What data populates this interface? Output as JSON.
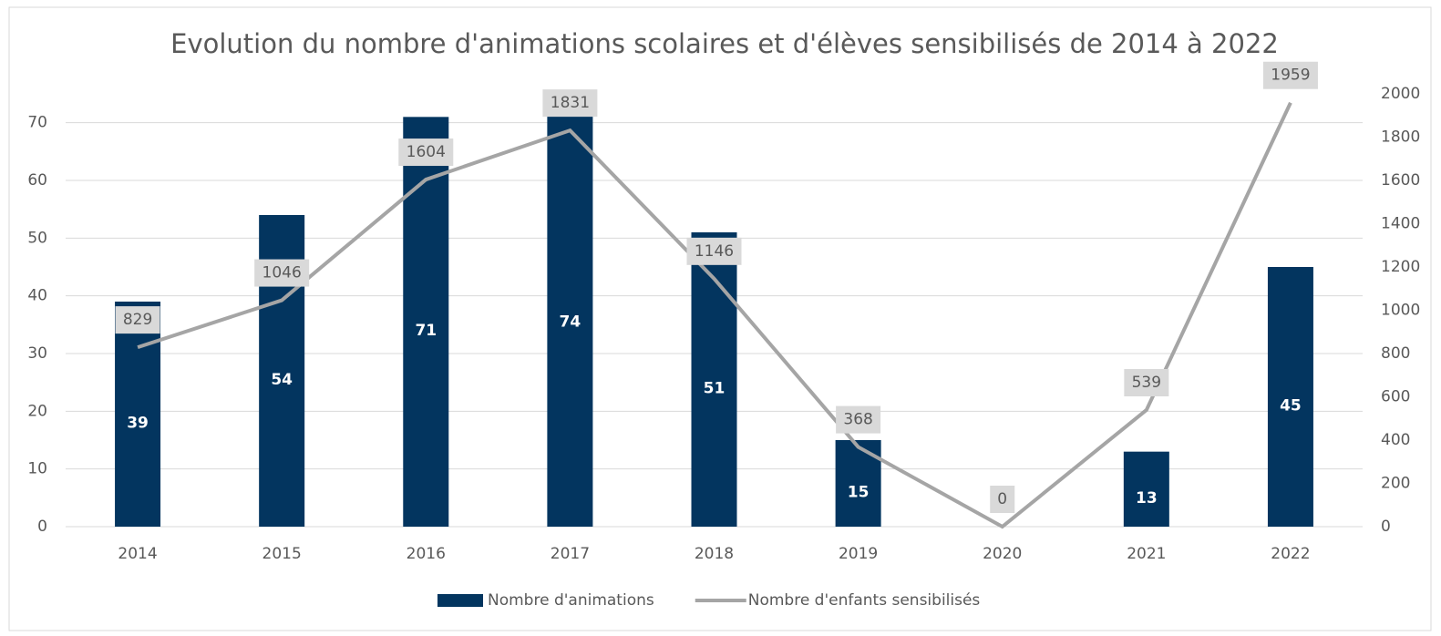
{
  "chart_data": {
    "type": "bar+line",
    "title": "Evolution du nombre d'animations scolaires et d'élèves sensibilisés de 2014 à 2022",
    "categories": [
      "2014",
      "2015",
      "2016",
      "2017",
      "2018",
      "2019",
      "2020",
      "2021",
      "2022"
    ],
    "series": [
      {
        "name": "Nombre d'animations",
        "type": "bar",
        "color": "#03355f",
        "axis": "y",
        "values": [
          39,
          54,
          71,
          74,
          51,
          15,
          null,
          13,
          45
        ]
      },
      {
        "name": "Nombre d'enfants sensibilisés",
        "type": "line",
        "color": "#a5a5a5",
        "axis": "y2",
        "values": [
          829,
          1046,
          1604,
          1831,
          1146,
          368,
          0,
          539,
          1959
        ]
      }
    ],
    "ylim": [
      0,
      75
    ],
    "yticks": [
      0,
      10,
      20,
      30,
      40,
      50,
      60,
      70
    ],
    "y2lim": [
      0,
      2000
    ],
    "y2ticks": [
      0,
      200,
      400,
      600,
      800,
      1000,
      1200,
      1400,
      1600,
      1800,
      2000
    ],
    "grid": true,
    "legend": "bottom"
  }
}
